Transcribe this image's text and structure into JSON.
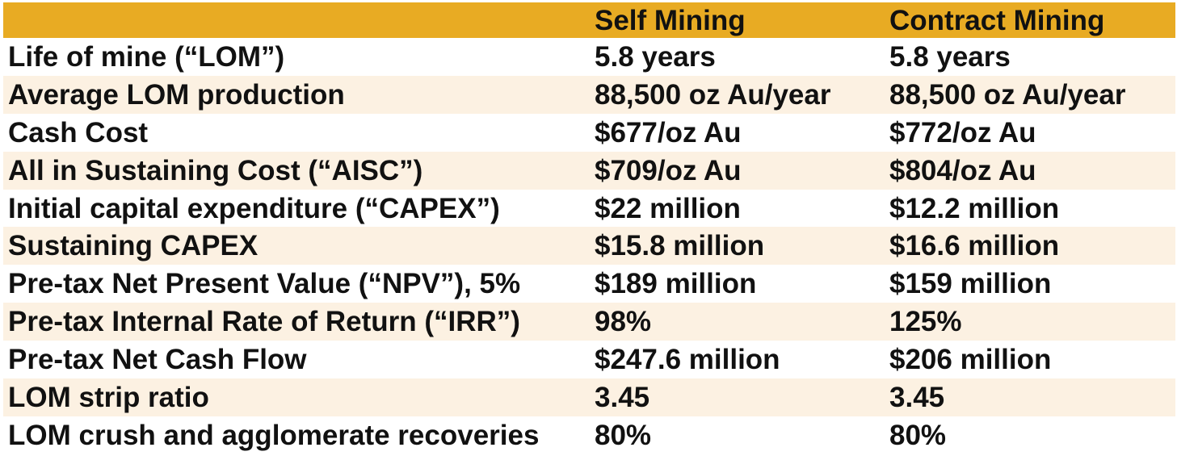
{
  "table": {
    "headers": [
      "",
      "Self Mining",
      "Contract Mining"
    ],
    "rows": [
      [
        "Life of mine (“LOM”)",
        "5.8 years",
        "5.8 years"
      ],
      [
        "Average LOM production",
        "88,500 oz Au/year",
        "88,500 oz Au/year"
      ],
      [
        "Cash Cost",
        "$677/oz Au",
        "$772/oz Au"
      ],
      [
        "All in Sustaining Cost (“AISC”)",
        "$709/oz Au",
        "$804/oz Au"
      ],
      [
        "Initial capital expenditure (“CAPEX”)",
        "$22 million",
        "$12.2 million"
      ],
      [
        "Sustaining CAPEX",
        "$15.8 million",
        "$16.6 million"
      ],
      [
        "Pre-tax Net Present Value (“NPV”), 5%",
        "$189 million",
        "$159 million"
      ],
      [
        "Pre-tax Internal Rate of Return (“IRR”)",
        "98%",
        "125%"
      ],
      [
        "Pre-tax Net Cash Flow",
        "$247.6 million",
        "$206 million"
      ],
      [
        "LOM strip ratio",
        "3.45",
        "3.45"
      ],
      [
        "LOM crush and agglomerate recoveries",
        "80%",
        "80%"
      ]
    ]
  },
  "colors": {
    "header_background": "#e8ab23",
    "shaded_row_background": "#fcf1e2",
    "text": "#111111"
  }
}
